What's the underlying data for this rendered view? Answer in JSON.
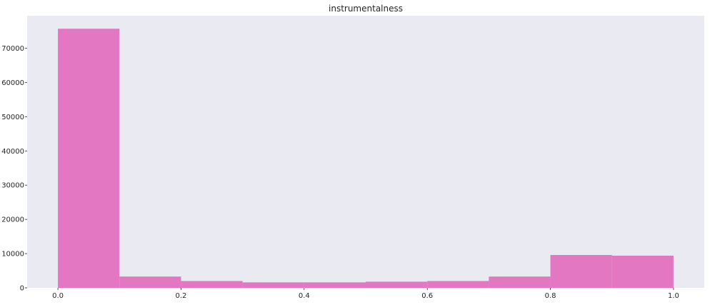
{
  "chart_data": {
    "type": "bar",
    "title": "instrumentalness",
    "xlabel": "",
    "ylabel": "",
    "bin_edges": [
      0.0,
      0.1,
      0.2,
      0.3,
      0.4,
      0.5,
      0.6,
      0.7,
      0.8,
      0.9,
      1.0
    ],
    "values": [
      75700,
      3300,
      2000,
      1600,
      1600,
      1800,
      2000,
      3300,
      9600,
      9400
    ],
    "xlim": [
      -0.05,
      1.05
    ],
    "ylim": [
      0,
      79500
    ],
    "xticks": [
      0.0,
      0.2,
      0.4,
      0.6,
      0.8,
      1.0
    ],
    "xtick_labels": [
      "0.0",
      "0.2",
      "0.4",
      "0.6",
      "0.8",
      "1.0"
    ],
    "yticks": [
      0,
      10000,
      20000,
      30000,
      40000,
      50000,
      60000,
      70000
    ],
    "ytick_labels": [
      "0",
      "10000",
      "20000",
      "30000",
      "40000",
      "50000",
      "60000",
      "70000"
    ],
    "grid": false,
    "bar_color": "#e377c2",
    "background_color": "#eaeaf2"
  }
}
